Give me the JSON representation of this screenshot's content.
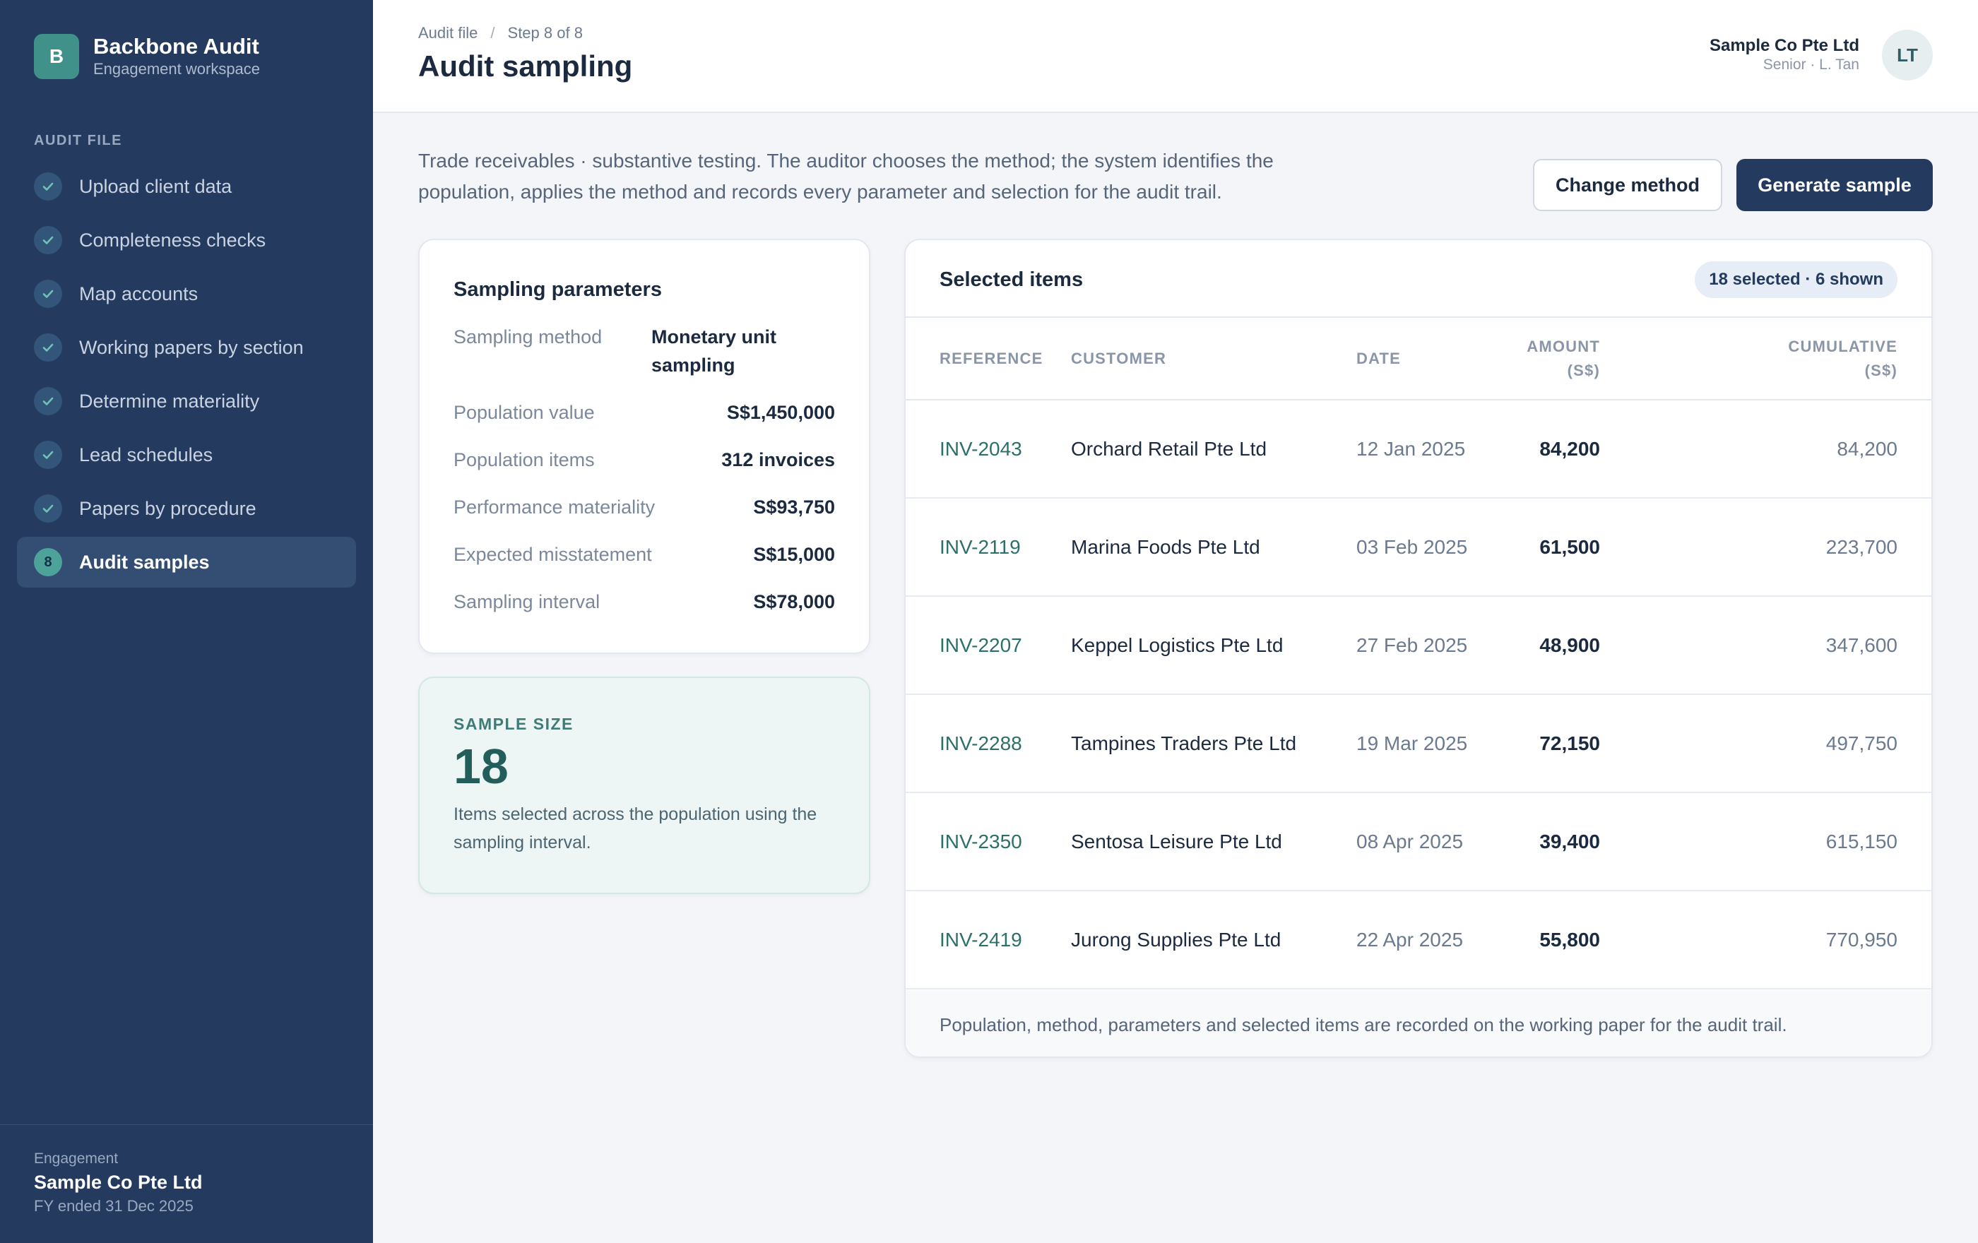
{
  "brand": {
    "initial": "B",
    "name": "Backbone Audit",
    "subtitle": "Engagement workspace"
  },
  "sidebar": {
    "section_label": "AUDIT FILE",
    "items": [
      {
        "label": "Upload client data",
        "status": "done"
      },
      {
        "label": "Completeness checks",
        "status": "done"
      },
      {
        "label": "Map accounts",
        "status": "done"
      },
      {
        "label": "Working papers by section",
        "status": "done"
      },
      {
        "label": "Determine materiality",
        "status": "done"
      },
      {
        "label": "Lead schedules",
        "status": "done"
      },
      {
        "label": "Papers by procedure",
        "status": "done"
      },
      {
        "label": "Audit samples",
        "status": "active",
        "step": "8"
      }
    ],
    "footer": {
      "label": "Engagement",
      "name": "Sample Co Pte Ltd",
      "period": "FY ended 31 Dec 2025"
    }
  },
  "header": {
    "breadcrumb": {
      "parent": "Audit file",
      "separator": "/",
      "current": "Step 8 of 8"
    },
    "title": "Audit sampling",
    "user": {
      "company": "Sample Co Pte Ltd",
      "role": "Senior · L. Tan",
      "initials": "LT"
    }
  },
  "intro": {
    "line1": "Trade receivables · substantive testing. The auditor chooses the method; the system identifies the",
    "line2": "population, applies the method and records every parameter and selection for the audit trail."
  },
  "actions": {
    "change_method": "Change method",
    "generate_sample": "Generate sample"
  },
  "params": {
    "title": "Sampling parameters",
    "method_label": "Sampling method",
    "method_value": "Monetary unit sampling",
    "rows": [
      {
        "label": "Population value",
        "value": "S$1,450,000"
      },
      {
        "label": "Population items",
        "value": "312 invoices"
      },
      {
        "label": "Performance materiality",
        "value": "S$93,750"
      },
      {
        "label": "Expected misstatement",
        "value": "S$15,000"
      },
      {
        "label": "Sampling interval",
        "value": "S$78,000"
      }
    ]
  },
  "sample_size": {
    "label": "SAMPLE SIZE",
    "value": "18",
    "desc": "Items selected across the population using the sampling interval."
  },
  "items": {
    "title": "Selected items",
    "badge": "18 selected · 6 shown",
    "columns": {
      "reference": "REFERENCE",
      "customer": "CUSTOMER",
      "date": "DATE",
      "amount": "AMOUNT (S$)",
      "cumulative": "CUMULATIVE (S$)"
    },
    "rows": [
      {
        "ref": "INV-2043",
        "customer": "Orchard Retail Pte Ltd",
        "date": "12 Jan 2025",
        "amount": "84,200",
        "cumulative": "84,200"
      },
      {
        "ref": "INV-2119",
        "customer": "Marina Foods Pte Ltd",
        "date": "03 Feb 2025",
        "amount": "61,500",
        "cumulative": "223,700"
      },
      {
        "ref": "INV-2207",
        "customer": "Keppel Logistics Pte Ltd",
        "date": "27 Feb 2025",
        "amount": "48,900",
        "cumulative": "347,600"
      },
      {
        "ref": "INV-2288",
        "customer": "Tampines Traders Pte Ltd",
        "date": "19 Mar 2025",
        "amount": "72,150",
        "cumulative": "497,750"
      },
      {
        "ref": "INV-2350",
        "customer": "Sentosa Leisure Pte Ltd",
        "date": "08 Apr 2025",
        "amount": "39,400",
        "cumulative": "615,150"
      },
      {
        "ref": "INV-2419",
        "customer": "Jurong Supplies Pte Ltd",
        "date": "22 Apr 2025",
        "amount": "55,800",
        "cumulative": "770,950"
      }
    ],
    "footnote": "Population, method, parameters and selected items are recorded on the working paper for the audit trail."
  },
  "colors": {
    "sidebar": "#243a5e",
    "accent": "#3f918a",
    "primary_button": "#243a5e",
    "reference_link": "#2b7069"
  },
  "icons": {
    "done": "check-icon"
  }
}
